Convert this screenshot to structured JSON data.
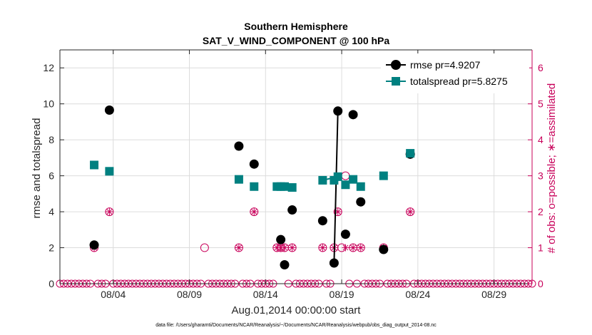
{
  "chart_data": {
    "type": "line",
    "title": "Southern Hemisphere",
    "subtitle": "SAT_V_WIND_COMPONENT @ 100 hPa",
    "xlabel": "Aug.01,2014 00:00:00 start",
    "ylabel": "rmse and totalspread",
    "ylabel_right": "# of obs: o=possible; ∗=assimilated",
    "footnote": "data file: /Users/gharamti/Documents/NCAR/Reanalysis/~/Documents/NCAR/Reanalysis/webpub/obs_diag_output_2014-08.nc",
    "xlim": [
      0,
      31
    ],
    "ylim": [
      0,
      13
    ],
    "ylim_right": [
      0,
      6.5
    ],
    "x_ticks": [
      3.5,
      8.5,
      13.5,
      18.5,
      23.5,
      28.5
    ],
    "x_tick_labels": [
      "08/04",
      "08/09",
      "08/14",
      "08/19",
      "08/24",
      "08/29"
    ],
    "y_ticks": [
      0,
      2,
      4,
      6,
      8,
      10,
      12
    ],
    "y_tick_labels": [
      "0",
      "2",
      "4",
      "6",
      "8",
      "10",
      "12"
    ],
    "y_ticks_right": [
      0,
      1,
      2,
      3,
      4,
      5,
      6
    ],
    "y_tick_labels_right": [
      "0",
      "1",
      "2",
      "3",
      "4",
      "5",
      "6"
    ],
    "grid": true,
    "legend_position": "top-right",
    "series": [
      {
        "name": "rmse pr=4.9207",
        "color": "#000000",
        "marker": "circle",
        "points": [
          [
            2.25,
            2.15
          ],
          [
            3.25,
            9.65
          ],
          [
            11.75,
            7.65
          ],
          [
            12.75,
            6.65
          ],
          [
            14.5,
            2.45
          ],
          [
            14.75,
            1.05
          ],
          [
            15.25,
            4.1
          ],
          [
            17.25,
            3.5
          ],
          [
            18.0,
            1.15
          ],
          [
            18.25,
            9.6
          ],
          [
            18.75,
            2.75
          ],
          [
            19.25,
            9.4
          ],
          [
            19.75,
            4.55
          ],
          [
            21.25,
            1.9
          ],
          [
            23.0,
            7.2
          ]
        ],
        "segments": [
          [
            [
              18.0,
              1.15
            ],
            [
              18.25,
              9.6
            ]
          ]
        ]
      },
      {
        "name": "totalspread pr=5.8275",
        "color": "#008080",
        "marker": "square",
        "points": [
          [
            2.25,
            6.6
          ],
          [
            3.25,
            6.25
          ],
          [
            11.75,
            5.8
          ],
          [
            12.75,
            5.4
          ],
          [
            14.25,
            5.4
          ],
          [
            14.5,
            5.4
          ],
          [
            14.75,
            5.4
          ],
          [
            15.25,
            5.35
          ],
          [
            17.25,
            5.75
          ],
          [
            18.0,
            5.75
          ],
          [
            18.25,
            5.95
          ],
          [
            18.75,
            5.5
          ],
          [
            19.25,
            5.8
          ],
          [
            19.75,
            5.4
          ],
          [
            21.25,
            6.0
          ],
          [
            23.0,
            7.25
          ]
        ],
        "segments": [
          [
            [
              14.25,
              5.4
            ],
            [
              15.25,
              5.35
            ]
          ],
          [
            [
              17.25,
              5.75
            ],
            [
              18.25,
              5.95
            ]
          ]
        ]
      }
    ],
    "obs_possible_nonzero": [
      [
        2.25,
        1
      ],
      [
        3.25,
        2
      ],
      [
        9.5,
        1
      ],
      [
        11.75,
        1
      ],
      [
        12.75,
        2
      ],
      [
        14.25,
        1
      ],
      [
        14.5,
        1
      ],
      [
        14.75,
        1
      ],
      [
        15.25,
        1
      ],
      [
        17.25,
        1
      ],
      [
        18.0,
        1
      ],
      [
        18.25,
        2
      ],
      [
        18.5,
        1
      ],
      [
        18.75,
        3
      ],
      [
        19.25,
        1
      ],
      [
        19.75,
        1
      ],
      [
        21.25,
        1
      ],
      [
        23.0,
        2
      ]
    ],
    "obs_assimilated_nonzero": [
      [
        2.25,
        1
      ],
      [
        3.25,
        2
      ],
      [
        11.75,
        1
      ],
      [
        12.75,
        2
      ],
      [
        14.25,
        1
      ],
      [
        14.5,
        1
      ],
      [
        14.75,
        1
      ],
      [
        15.25,
        1
      ],
      [
        17.25,
        1
      ],
      [
        18.0,
        1
      ],
      [
        18.25,
        2
      ],
      [
        18.75,
        1
      ],
      [
        19.25,
        1
      ],
      [
        19.75,
        1
      ],
      [
        21.25,
        1
      ],
      [
        23.0,
        2
      ]
    ],
    "obs_zero_x_start": 0,
    "obs_zero_x_end": 31,
    "obs_zero_x_step": 0.25,
    "colors": {
      "rmse": "#000000",
      "totalspread": "#008080",
      "obs": "#c8005a",
      "axis": "#262626",
      "grid": "#dcdcdc"
    }
  }
}
